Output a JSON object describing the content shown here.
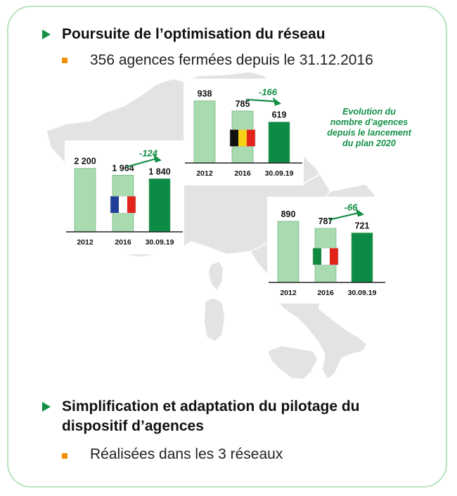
{
  "section1": {
    "heading": "Poursuite de l’optimisation du réseau",
    "bullet": "356 agences fermées depuis le 31.12.2016"
  },
  "note": {
    "line1": "Evolution du",
    "line2": "nombre d’agences",
    "line3": "depuis le lancement",
    "line4": "du plan 2020"
  },
  "section2": {
    "heading_line1": "Simplification et adaptation du pilotage du",
    "heading_line2": "dispositif d’agences",
    "bullet": "Réalisées dans les 3 réseaux"
  },
  "colors": {
    "bar_light": "#a8dcb0",
    "bar_dark": "#0e8a47",
    "accent_green": "#139046",
    "bullet_orange": "#f39200",
    "map": "#e3e3e3"
  },
  "chart_data": [
    {
      "type": "bar",
      "country": "France",
      "flag": "france-flag-icon",
      "categories": [
        "2012",
        "2016",
        "30.09.19"
      ],
      "values": [
        2200,
        1964,
        1840
      ],
      "labels": [
        "2 200",
        "1 964",
        "1 840"
      ],
      "change": "-124"
    },
    {
      "type": "bar",
      "country": "Belgium",
      "flag": "belgium-flag-icon",
      "categories": [
        "2012",
        "2016",
        "30.09.19"
      ],
      "values": [
        938,
        785,
        619
      ],
      "labels": [
        "938",
        "785",
        "619"
      ],
      "change": "-166"
    },
    {
      "type": "bar",
      "country": "Italy",
      "flag": "italy-flag-icon",
      "categories": [
        "2012",
        "2016",
        "30.09.19"
      ],
      "values": [
        890,
        787,
        721
      ],
      "labels": [
        "890",
        "787",
        "721"
      ],
      "change": "-66"
    }
  ]
}
